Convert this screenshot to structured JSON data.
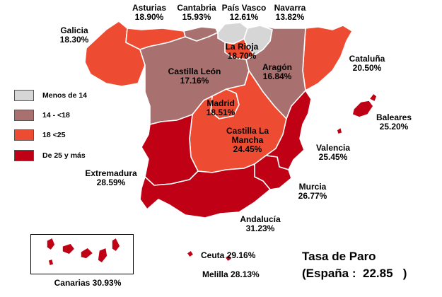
{
  "title": {
    "line1": "Tasa de Paro",
    "line2_prefix": "(España :",
    "national_value": "22.85",
    "line2_suffix": ")"
  },
  "legend": [
    {
      "label": "Menos de 14",
      "color": "#d6d6d6"
    },
    {
      "label": "14 - <18",
      "color": "#a8716f"
    },
    {
      "label": "18 <25",
      "color": "#ee4b33"
    },
    {
      "label": "De 25 y más",
      "color": "#c00014"
    }
  ],
  "regions": {
    "galicia": {
      "name": "Galicia",
      "value": "18.30%",
      "color": "#ee4b33"
    },
    "asturias": {
      "name": "Asturias",
      "value": "18.90%",
      "color": "#ee4b33"
    },
    "cantabria": {
      "name": "Cantabria",
      "value": "15.93%",
      "color": "#a8716f"
    },
    "pais_vasco": {
      "name": "País Vasco",
      "value": "12.61%",
      "color": "#d6d6d6"
    },
    "navarra": {
      "name": "Navarra",
      "value": "13.82%",
      "color": "#d6d6d6"
    },
    "la_rioja": {
      "name": "La Rioja",
      "value": "18.70%",
      "color": "#ee4b33"
    },
    "cataluna": {
      "name": "Cataluña",
      "value": "20.50%",
      "color": "#ee4b33"
    },
    "aragon": {
      "name": "Aragón",
      "value": "16.84%",
      "color": "#a8716f"
    },
    "castilla_leon": {
      "name": "Castilla León",
      "value": "17.16%",
      "color": "#a8716f"
    },
    "madrid": {
      "name": "Madrid",
      "value": "18.51%",
      "color": "#ee4b33"
    },
    "castilla_la_mancha": {
      "name": "Castilla La Mancha",
      "value": "24.45%",
      "color": "#ee4b33"
    },
    "baleares": {
      "name": "Baleares",
      "value": "25.20%",
      "color": "#c00014"
    },
    "valencia": {
      "name": "Valencia",
      "value": "25.45%",
      "color": "#c00014"
    },
    "extremadura": {
      "name": "Extremadura",
      "value": "28.59%",
      "color": "#c00014"
    },
    "murcia": {
      "name": "Murcia",
      "value": "26.77%",
      "color": "#c00014"
    },
    "andalucia": {
      "name": "Andalucía",
      "value": "31.23%",
      "color": "#c00014"
    },
    "canarias": {
      "name": "Canarias",
      "value": "30.93%",
      "color": "#c00014"
    },
    "ceuta": {
      "name": "Ceuta",
      "value": "29.16%",
      "color": "#c00014"
    },
    "melilla": {
      "name": "Melilla",
      "value": "28.13%",
      "color": "#c00014"
    }
  }
}
